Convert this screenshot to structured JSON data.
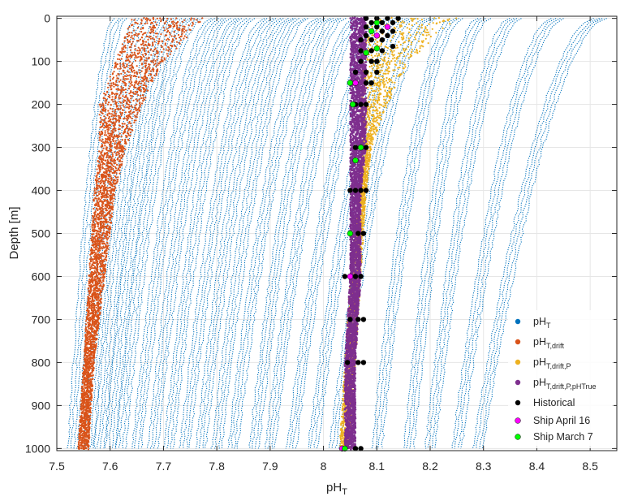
{
  "chart_data": {
    "type": "scatter",
    "title": "",
    "xlabel": "pH",
    "xlabel_sub": "T",
    "ylabel": "Depth [m]",
    "xlim": [
      7.5,
      8.55
    ],
    "ylim": [
      1005,
      -5
    ],
    "y_reversed": true,
    "grid": true,
    "legend_position": "bottom-right",
    "x_ticks": [
      "7.5",
      "7.6",
      "7.7",
      "7.8",
      "7.9",
      "8",
      "8.1",
      "8.2",
      "8.3",
      "8.4",
      "8.5"
    ],
    "x_tick_values": [
      7.5,
      7.6,
      7.7,
      7.8,
      7.9,
      8.0,
      8.1,
      8.2,
      8.3,
      8.4,
      8.5
    ],
    "y_ticks": [
      "0",
      "100",
      "200",
      "300",
      "400",
      "500",
      "600",
      "700",
      "800",
      "900",
      "1000"
    ],
    "y_tick_values": [
      0,
      100,
      200,
      300,
      400,
      500,
      600,
      700,
      800,
      900,
      1000
    ],
    "series": [
      {
        "name": "pH",
        "name_sub": "T",
        "color": "#0072BD",
        "description_profiles": {
          "surface_pH": [
            7.62,
            7.66,
            7.7,
            7.73,
            7.76,
            7.8,
            7.83,
            7.86,
            7.9,
            7.93,
            7.96,
            8.0,
            8.03,
            8.07,
            8.12,
            8.16,
            8.2,
            8.25,
            8.3,
            8.36,
            8.44,
            8.52
          ],
          "bottom_pH": [
            7.53,
            7.56,
            7.58,
            7.6,
            7.62,
            7.65,
            7.68,
            7.71,
            7.74,
            7.77,
            7.8,
            7.83,
            7.87,
            7.9,
            7.94,
            7.98,
            8.02,
            8.1,
            8.16,
            8.2,
            8.25,
            8.29
          ]
        }
      },
      {
        "name": "pH",
        "name_sub": "T,drift",
        "color": "#D95319",
        "description_band": {
          "depth": [
            0,
            100,
            200,
            300,
            400,
            600,
            800,
            1000
          ],
          "min_pH": [
            7.64,
            7.61,
            7.58,
            7.58,
            7.57,
            7.56,
            7.55,
            7.54
          ],
          "max_pH": [
            7.78,
            7.7,
            7.66,
            7.63,
            7.61,
            7.59,
            7.57,
            7.56
          ]
        }
      },
      {
        "name": "pH",
        "name_sub": "T,drift,P",
        "color": "#EDB120",
        "description_band": {
          "depth": [
            0,
            100,
            200,
            300,
            400,
            600,
            800,
            1000
          ],
          "min_pH": [
            8.06,
            8.07,
            8.07,
            8.07,
            8.07,
            8.05,
            8.04,
            8.03
          ],
          "max_pH": [
            8.25,
            8.16,
            8.12,
            8.09,
            8.08,
            8.07,
            8.06,
            8.05
          ]
        }
      },
      {
        "name": "pH",
        "name_sub": "T,drift,P,pHTrue",
        "color": "#7E2F8E",
        "description_band": {
          "depth": [
            0,
            100,
            200,
            300,
            400,
            600,
            800,
            1000
          ],
          "min_pH": [
            8.05,
            8.05,
            8.05,
            8.05,
            8.05,
            8.05,
            8.04,
            8.04
          ],
          "max_pH": [
            8.08,
            8.08,
            8.08,
            8.08,
            8.07,
            8.07,
            8.06,
            8.06
          ]
        }
      },
      {
        "name": "Historical",
        "color": "#000000",
        "points": [
          {
            "x": 8.08,
            "y": 0
          },
          {
            "x": 8.1,
            "y": 0
          },
          {
            "x": 8.12,
            "y": 0
          },
          {
            "x": 8.14,
            "y": 0
          },
          {
            "x": 8.09,
            "y": 10
          },
          {
            "x": 8.11,
            "y": 10
          },
          {
            "x": 8.13,
            "y": 10
          },
          {
            "x": 8.08,
            "y": 20
          },
          {
            "x": 8.1,
            "y": 20
          },
          {
            "x": 8.12,
            "y": 20
          },
          {
            "x": 8.09,
            "y": 30
          },
          {
            "x": 8.11,
            "y": 30
          },
          {
            "x": 8.13,
            "y": 30
          },
          {
            "x": 8.08,
            "y": 40
          },
          {
            "x": 8.1,
            "y": 40
          },
          {
            "x": 8.12,
            "y": 40
          },
          {
            "x": 8.07,
            "y": 50
          },
          {
            "x": 8.09,
            "y": 50
          },
          {
            "x": 8.11,
            "y": 50
          },
          {
            "x": 8.13,
            "y": 65
          },
          {
            "x": 8.07,
            "y": 75
          },
          {
            "x": 8.09,
            "y": 75
          },
          {
            "x": 8.11,
            "y": 75
          },
          {
            "x": 8.07,
            "y": 100
          },
          {
            "x": 8.09,
            "y": 100
          },
          {
            "x": 8.1,
            "y": 100
          },
          {
            "x": 8.06,
            "y": 125
          },
          {
            "x": 8.08,
            "y": 125
          },
          {
            "x": 8.1,
            "y": 125
          },
          {
            "x": 8.06,
            "y": 150
          },
          {
            "x": 8.08,
            "y": 150
          },
          {
            "x": 8.09,
            "y": 150
          },
          {
            "x": 8.06,
            "y": 200
          },
          {
            "x": 8.07,
            "y": 200
          },
          {
            "x": 8.08,
            "y": 200
          },
          {
            "x": 8.06,
            "y": 300
          },
          {
            "x": 8.07,
            "y": 300
          },
          {
            "x": 8.08,
            "y": 300
          },
          {
            "x": 8.05,
            "y": 400
          },
          {
            "x": 8.06,
            "y": 400
          },
          {
            "x": 8.07,
            "y": 400
          },
          {
            "x": 8.08,
            "y": 400
          },
          {
            "x": 8.065,
            "y": 500
          },
          {
            "x": 8.075,
            "y": 500
          },
          {
            "x": 8.04,
            "y": 600
          },
          {
            "x": 8.06,
            "y": 600
          },
          {
            "x": 8.07,
            "y": 600
          },
          {
            "x": 8.05,
            "y": 700
          },
          {
            "x": 8.065,
            "y": 700
          },
          {
            "x": 8.075,
            "y": 700
          },
          {
            "x": 8.045,
            "y": 800
          },
          {
            "x": 8.065,
            "y": 800
          },
          {
            "x": 8.075,
            "y": 800
          },
          {
            "x": 8.04,
            "y": 1000
          },
          {
            "x": 8.06,
            "y": 1000
          },
          {
            "x": 8.07,
            "y": 1000
          }
        ]
      },
      {
        "name": "Ship April 16",
        "color": "#FF00FF",
        "points": [
          {
            "x": 8.12,
            "y": 20
          },
          {
            "x": 8.1,
            "y": 40
          },
          {
            "x": 8.08,
            "y": 80
          },
          {
            "x": 8.06,
            "y": 150
          },
          {
            "x": 8.07,
            "y": 300
          },
          {
            "x": 8.05,
            "y": 600
          },
          {
            "x": 8.035,
            "y": 1000
          }
        ]
      },
      {
        "name": "Ship March 7",
        "color": "#00FF00",
        "points": [
          {
            "x": 8.1,
            "y": 10
          },
          {
            "x": 8.09,
            "y": 30
          },
          {
            "x": 8.1,
            "y": 70
          },
          {
            "x": 8.08,
            "y": 80
          },
          {
            "x": 8.05,
            "y": 150
          },
          {
            "x": 8.055,
            "y": 200
          },
          {
            "x": 8.07,
            "y": 300
          },
          {
            "x": 8.06,
            "y": 330
          },
          {
            "x": 8.05,
            "y": 500
          },
          {
            "x": 8.04,
            "y": 1000
          }
        ]
      }
    ]
  }
}
